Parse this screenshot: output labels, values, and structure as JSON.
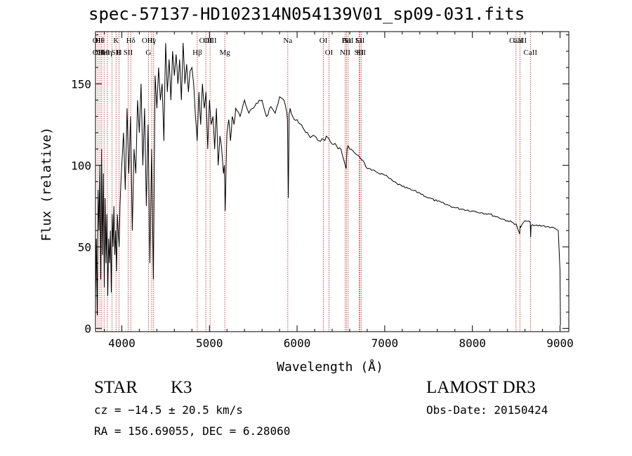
{
  "chart_data": {
    "type": "line",
    "title": "spec-57137-HD102314N054139V01_sp09-031.fits",
    "xlabel": "Wavelength (Å)",
    "ylabel": "Flux (relative)",
    "xlim": [
      3700,
      9100
    ],
    "ylim": [
      -2,
      182
    ],
    "xticks": [
      4000,
      5000,
      6000,
      7000,
      8000,
      9000
    ],
    "yticks": [
      0,
      50,
      100,
      150
    ],
    "series": [
      {
        "name": "flux",
        "x": [
          3700,
          3710,
          3720,
          3730,
          3740,
          3750,
          3760,
          3770,
          3780,
          3790,
          3800,
          3810,
          3820,
          3830,
          3840,
          3850,
          3860,
          3870,
          3880,
          3890,
          3900,
          3910,
          3920,
          3930,
          3940,
          3950,
          3960,
          3970,
          3980,
          3990,
          4000,
          4020,
          4040,
          4060,
          4080,
          4100,
          4120,
          4140,
          4160,
          4180,
          4200,
          4220,
          4240,
          4260,
          4280,
          4300,
          4320,
          4340,
          4360,
          4380,
          4400,
          4420,
          4440,
          4460,
          4480,
          4500,
          4520,
          4540,
          4560,
          4580,
          4600,
          4620,
          4640,
          4660,
          4680,
          4700,
          4720,
          4740,
          4760,
          4780,
          4800,
          4820,
          4840,
          4860,
          4880,
          4900,
          4920,
          4940,
          4960,
          4980,
          5000,
          5020,
          5040,
          5060,
          5080,
          5100,
          5120,
          5140,
          5160,
          5170,
          5180,
          5190,
          5200,
          5220,
          5240,
          5260,
          5280,
          5300,
          5350,
          5400,
          5450,
          5500,
          5550,
          5600,
          5650,
          5700,
          5750,
          5800,
          5850,
          5880,
          5890,
          5895,
          5900,
          5910,
          5920,
          5950,
          6000,
          6050,
          6100,
          6150,
          6200,
          6250,
          6300,
          6350,
          6400,
          6450,
          6500,
          6550,
          6560,
          6565,
          6570,
          6580,
          6600,
          6650,
          6700,
          6750,
          6800,
          6850,
          6900,
          7000,
          7100,
          7200,
          7300,
          7400,
          7500,
          7600,
          7700,
          7800,
          7900,
          8000,
          8100,
          8200,
          8300,
          8400,
          8500,
          8540,
          8545,
          8550,
          8600,
          8660,
          8665,
          8670,
          8700,
          8800,
          8900,
          8950,
          8980,
          9000,
          9005
        ],
        "y": [
          18,
          55,
          8,
          85,
          60,
          100,
          30,
          110,
          45,
          95,
          25,
          80,
          40,
          70,
          20,
          55,
          40,
          60,
          22,
          70,
          50,
          75,
          45,
          60,
          35,
          70,
          58,
          50,
          75,
          90,
          100,
          120,
          85,
          135,
          95,
          130,
          60,
          110,
          95,
          140,
          120,
          150,
          100,
          135,
          75,
          125,
          40,
          110,
          30,
          155,
          135,
          160,
          140,
          150,
          115,
          175,
          145,
          165,
          140,
          170,
          155,
          168,
          150,
          165,
          140,
          175,
          150,
          162,
          145,
          158,
          160,
          150,
          130,
          115,
          145,
          125,
          150,
          135,
          145,
          110,
          140,
          125,
          130,
          110,
          135,
          100,
          118,
          110,
          95,
          100,
          72,
          100,
          120,
          128,
          115,
          130,
          125,
          135,
          130,
          140,
          132,
          135,
          138,
          140,
          130,
          136,
          132,
          142,
          140,
          133,
          128,
          100,
          80,
          132,
          135,
          130,
          128,
          125,
          120,
          117,
          118,
          115,
          116,
          117,
          113,
          112,
          110,
          100,
          98,
          105,
          110,
          112,
          110,
          108,
          106,
          103,
          98,
          97,
          96,
          94,
          90,
          87,
          85,
          83,
          80,
          78,
          76,
          74,
          73,
          72,
          71,
          70,
          68,
          66,
          64,
          58,
          63,
          62,
          66,
          65,
          56,
          63,
          63,
          63,
          62,
          61,
          60,
          35,
          2
        ]
      }
    ],
    "line_markers": [
      {
        "wave": 3727,
        "top": "OII",
        "mid": "OII"
      },
      {
        "wave": 3750,
        "top": "Hθ",
        "mid": "OII"
      },
      {
        "wave": 3771,
        "top": "",
        "mid": ""
      },
      {
        "wave": 3798,
        "top": "",
        "mid": "HeI"
      },
      {
        "wave": 3835,
        "top": "",
        "mid": "Hη"
      },
      {
        "wave": 3889,
        "top": "",
        "mid": ""
      },
      {
        "wave": 3934,
        "top": "K",
        "mid": "SII"
      },
      {
        "wave": 3969,
        "top": "",
        "mid": "H"
      },
      {
        "wave": 4072,
        "top": "",
        "mid": "SII"
      },
      {
        "wave": 4102,
        "top": "Hδ",
        "mid": ""
      },
      {
        "wave": 4304,
        "top": "OIII",
        "mid": "G"
      },
      {
        "wave": 4341,
        "top": "Hγ",
        "mid": ""
      },
      {
        "wave": 4363,
        "top": "",
        "mid": ""
      },
      {
        "wave": 4861,
        "top": "",
        "mid": "Hβ"
      },
      {
        "wave": 4959,
        "top": "OIII",
        "mid": ""
      },
      {
        "wave": 5007,
        "top": "OIII",
        "mid": ""
      },
      {
        "wave": 5175,
        "top": "",
        "mid": "Mg"
      },
      {
        "wave": 5894,
        "top": "Na",
        "mid": ""
      },
      {
        "wave": 6300,
        "top": "OI",
        "mid": ""
      },
      {
        "wave": 6364,
        "top": "",
        "mid": "OI"
      },
      {
        "wave": 6548,
        "top": "",
        "mid": "NII"
      },
      {
        "wave": 6563,
        "top": "Hα",
        "mid": ""
      },
      {
        "wave": 6583,
        "top": "NII",
        "mid": ""
      },
      {
        "wave": 6707,
        "top": "Li",
        "mid": "SII"
      },
      {
        "wave": 6717,
        "top": "SII",
        "mid": ""
      },
      {
        "wave": 6731,
        "top": "",
        "mid": "SII"
      },
      {
        "wave": 8498,
        "top": "CaII",
        "mid": ""
      },
      {
        "wave": 8542,
        "top": "CaII",
        "mid": ""
      },
      {
        "wave": 8662,
        "top": "",
        "mid": "CaII"
      }
    ],
    "line_color": "#b22222"
  },
  "info": {
    "class_label": "STAR",
    "subclass": "K3",
    "survey": "LAMOST DR3",
    "cz": "cz = −14.5 ± 20.5 km/s",
    "obs_date": "Obs-Date: 20150424",
    "coords": "RA = 156.69055, DEC =    6.28060"
  }
}
